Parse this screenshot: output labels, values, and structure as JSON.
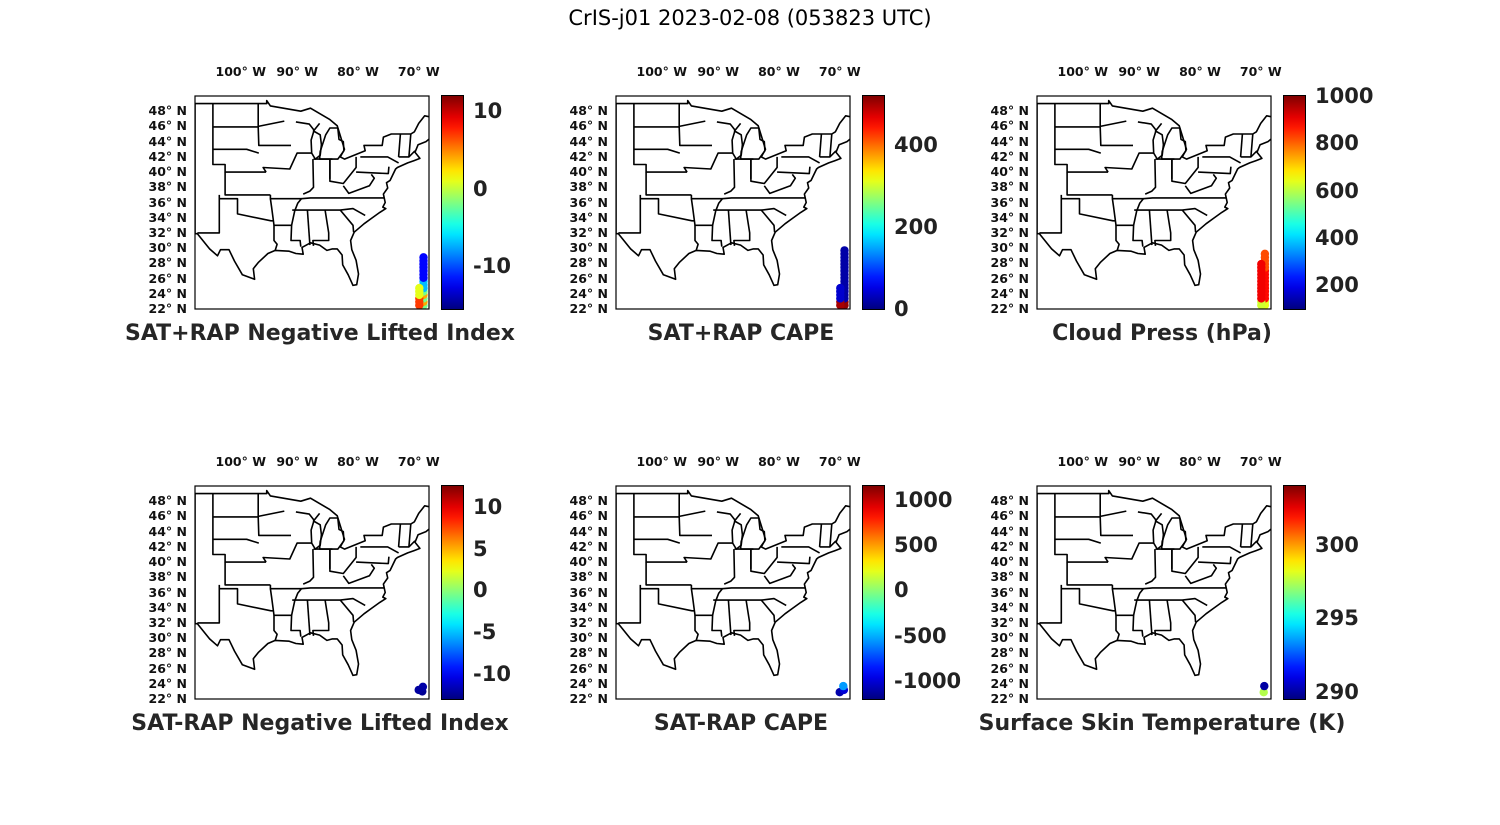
{
  "figure": {
    "title": "CrIS-j01 2023-02-08 (053823 UTC)"
  },
  "axes": {
    "lon_labels": [
      "100° W",
      "90° W",
      "80° W",
      "70° W"
    ],
    "lat_labels": [
      "48° N",
      "46° N",
      "44° N",
      "42° N",
      "40° N",
      "38° N",
      "36° N",
      "34° N",
      "32° N",
      "30° N",
      "28° N",
      "26° N",
      "24° N",
      "22° N"
    ]
  },
  "colormap": "jet",
  "panels": [
    {
      "title": "SAT+RAP Negative Lifted Index",
      "colorbar": {
        "range": [
          -15.5,
          12
        ],
        "ticks": [
          10,
          0,
          -10
        ],
        "tick_labels": [
          "10",
          "0",
          "-10"
        ]
      },
      "footprints": {
        "latitude_range": [
          22.5,
          29.5
        ],
        "values": [
          "mixed yellow/orange/cyan",
          "blue upper"
        ]
      }
    },
    {
      "title": "SAT+RAP CAPE",
      "colorbar": {
        "range": [
          0,
          520
        ],
        "ticks": [
          400,
          200,
          0
        ],
        "tick_labels": [
          "400",
          "200",
          "0"
        ]
      },
      "footprints": {
        "latitude_range": [
          22.5,
          30
        ],
        "values": [
          "dark red southern tip",
          "dark blue"
        ]
      }
    },
    {
      "title": "Cloud Press (hPa)",
      "colorbar": {
        "range": [
          100,
          1000
        ],
        "ticks": [
          1000,
          800,
          600,
          400,
          200
        ],
        "tick_labels": [
          "1000",
          "800",
          "600",
          "400",
          "200"
        ]
      },
      "footprints": {
        "latitude_range": [
          22.5,
          29.5
        ],
        "values": [
          "orange",
          "red",
          "yellow"
        ]
      }
    },
    {
      "title": "SAT-RAP Negative Lifted Index",
      "colorbar": {
        "range": [
          -13,
          12.5
        ],
        "ticks": [
          10,
          5,
          0,
          -5,
          -10
        ],
        "tick_labels": [
          "10",
          "5",
          "0",
          "-5",
          "-10"
        ]
      },
      "footprints": {
        "latitude_range": [
          22.5,
          24
        ],
        "values": [
          "dark blue"
        ]
      }
    },
    {
      "title": "SAT-RAP CAPE",
      "colorbar": {
        "range": [
          -1200,
          1150
        ],
        "ticks": [
          1000,
          500,
          0,
          -500,
          -1000
        ],
        "tick_labels": [
          "1000",
          "500",
          "0",
          "-500",
          "-1000"
        ]
      },
      "footprints": {
        "latitude_range": [
          22.5,
          24
        ],
        "values": [
          "blue",
          "cyan"
        ]
      }
    },
    {
      "title": "Surface Skin Temperature (K)",
      "colorbar": {
        "range": [
          289.5,
          304
        ],
        "ticks": [
          300,
          295,
          290
        ],
        "tick_labels": [
          "300",
          "295",
          "290"
        ]
      },
      "footprints": {
        "latitude_range": [
          22.5,
          23.8
        ],
        "values": [
          "yellow-green",
          "dark blue"
        ]
      }
    }
  ]
}
